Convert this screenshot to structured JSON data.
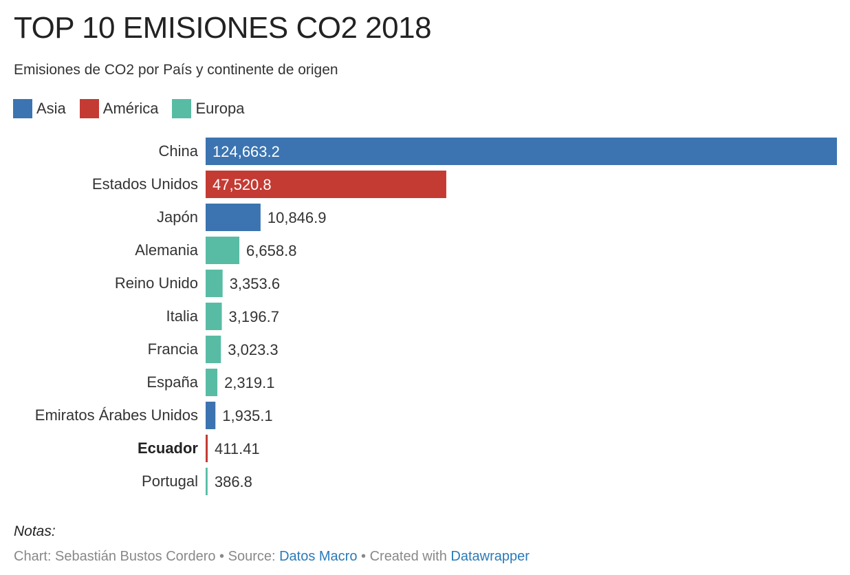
{
  "title": "TOP 10 EMISIONES CO2 2018",
  "subtitle": "Emisiones de CO2 por País y continente de origen",
  "legend": [
    {
      "label": "Asia",
      "color": "#3b74b0"
    },
    {
      "label": "América",
      "color": "#c43b34"
    },
    {
      "label": "Europa",
      "color": "#58bca4"
    }
  ],
  "chart_data": {
    "type": "bar",
    "orientation": "horizontal",
    "categories": [
      "China",
      "Estados Unidos",
      "Japón",
      "Alemania",
      "Reino Unido",
      "Italia",
      "Francia",
      "España",
      "Emiratos Árabes Unidos",
      "Ecuador",
      "Portugal"
    ],
    "values": [
      124663.2,
      47520.8,
      10846.9,
      6658.8,
      3353.6,
      3196.7,
      3023.3,
      2319.1,
      1935.1,
      411.41,
      386.8
    ],
    "value_labels": [
      "124,663.2",
      "47,520.8",
      "10,846.9",
      "6,658.8",
      "3,353.6",
      "3,196.7",
      "3,023.3",
      "2,319.1",
      "1,935.1",
      "411.41",
      "386.8"
    ],
    "groups": [
      "Asia",
      "América",
      "Asia",
      "Europa",
      "Europa",
      "Europa",
      "Europa",
      "Europa",
      "Asia",
      "América",
      "Europa"
    ],
    "highlighted": [
      "Ecuador"
    ],
    "xlim": [
      0,
      124663.2
    ],
    "grid": false,
    "legend_position": "top-left"
  },
  "notes": "Notas:",
  "footer": {
    "prefix": "Chart: Sebastián Bustos Cordero • Source: ",
    "source_link": "Datos Macro",
    "middle": " • Created with ",
    "tool_link": "Datawrapper"
  }
}
